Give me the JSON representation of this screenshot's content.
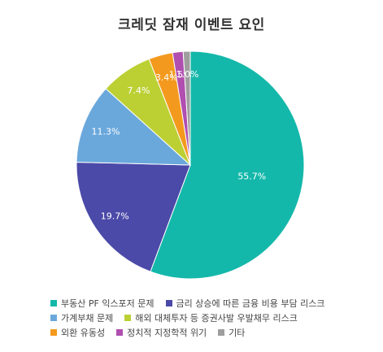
{
  "chart_data": {
    "type": "pie",
    "title": "크레딧 잠재 이벤트 요인",
    "slices": [
      {
        "label": "부동산 PF 익스포저 문제",
        "value": 55.7,
        "display": "55.7%",
        "color": "#14b8aa"
      },
      {
        "label": "금리 상승에 따른 금융 비용 부담 리스크",
        "value": 19.7,
        "display": "19.7%",
        "color": "#4b4aa8"
      },
      {
        "label": "가계부채 문제",
        "value": 11.3,
        "display": "11.3%",
        "color": "#6aa8dc"
      },
      {
        "label": "해외 대체투자 등 증권사발 우발채무 리스크",
        "value": 7.4,
        "display": "7.4%",
        "color": "#bcd034"
      },
      {
        "label": "외환 유동성",
        "value": 3.4,
        "display": "3.4%",
        "color": "#f39a1e"
      },
      {
        "label": "정치적 지정학적 위기",
        "value": 1.5,
        "display": "1.5%",
        "color": "#b04fb0"
      },
      {
        "label": "기타",
        "value": 1.0,
        "display": "1.0%",
        "color": "#9e9e9e"
      }
    ],
    "legend_rows": [
      [
        0,
        1
      ],
      [
        2,
        3
      ],
      [
        4,
        5,
        6
      ]
    ]
  }
}
